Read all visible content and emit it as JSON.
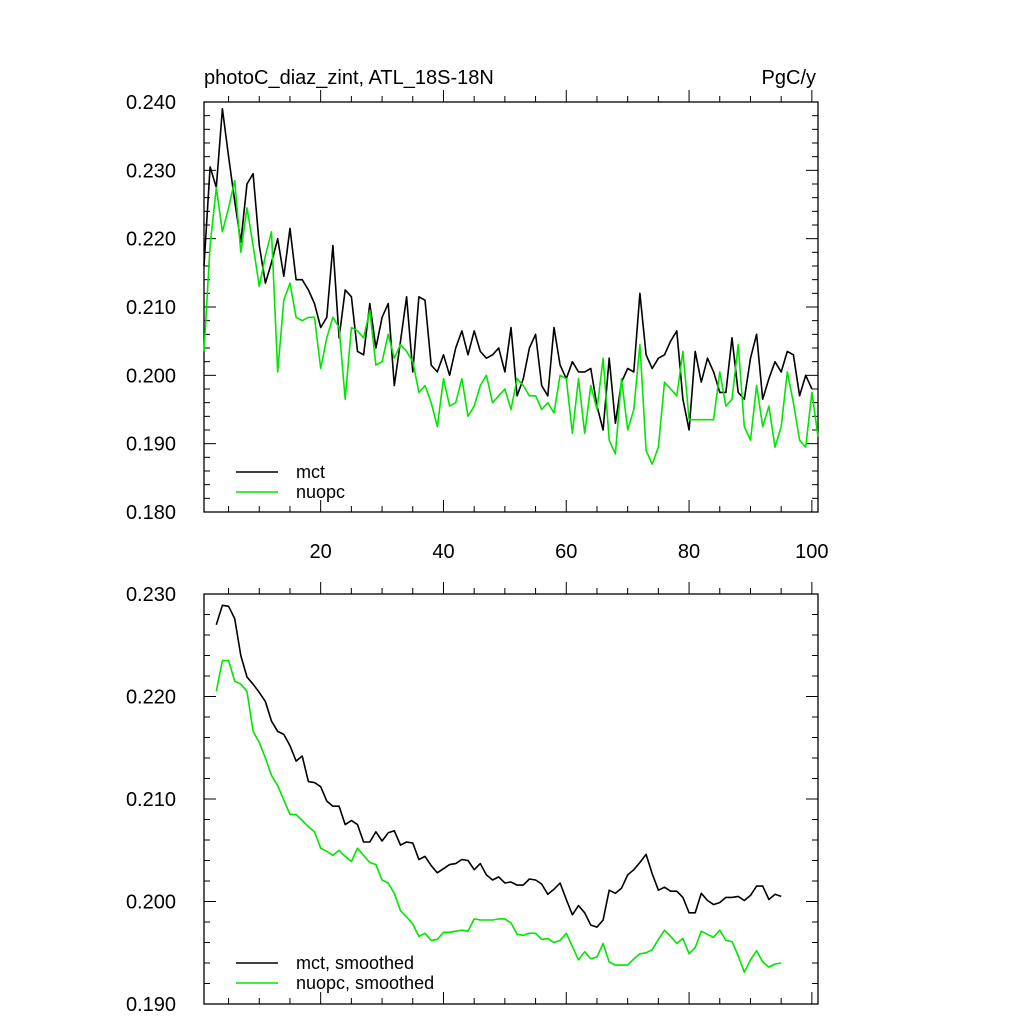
{
  "chart_data": [
    {
      "type": "line",
      "title": "photoC_diaz_zint, ATL_18S-18N",
      "units": "PgC/y",
      "xlim": [
        1,
        101
      ],
      "ylim": [
        0.18,
        0.24
      ],
      "xticks": [
        20,
        40,
        60,
        80,
        100
      ],
      "xtick_labels": [
        "20",
        "40",
        "60",
        "80",
        "100"
      ],
      "yticks": [
        0.18,
        0.19,
        0.2,
        0.21,
        0.22,
        0.23,
        0.24
      ],
      "ytick_labels": [
        "0.180",
        "0.190",
        "0.200",
        "0.210",
        "0.220",
        "0.230",
        "0.240"
      ],
      "legend_position": "bottom-left",
      "x_start": 1,
      "series": [
        {
          "name": "mct",
          "color": "#000000",
          "values": [
            0.216,
            0.2305,
            0.2275,
            0.239,
            0.232,
            0.2255,
            0.2195,
            0.228,
            0.2295,
            0.219,
            0.2135,
            0.2165,
            0.22,
            0.2145,
            0.2215,
            0.214,
            0.214,
            0.2125,
            0.2105,
            0.207,
            0.2085,
            0.219,
            0.2055,
            0.2125,
            0.2115,
            0.2035,
            0.203,
            0.2105,
            0.204,
            0.2085,
            0.2105,
            0.1985,
            0.205,
            0.2115,
            0.2005,
            0.2115,
            0.211,
            0.2015,
            0.2005,
            0.203,
            0.2,
            0.204,
            0.2065,
            0.203,
            0.2065,
            0.2035,
            0.2025,
            0.203,
            0.204,
            0.2005,
            0.207,
            0.197,
            0.1995,
            0.204,
            0.206,
            0.1985,
            0.197,
            0.207,
            0.2015,
            0.1995,
            0.202,
            0.2005,
            0.2005,
            0.201,
            0.1955,
            0.192,
            0.2025,
            0.193,
            0.199,
            0.201,
            0.2005,
            0.212,
            0.203,
            0.201,
            0.2025,
            0.203,
            0.205,
            0.2065,
            0.1965,
            0.192,
            0.2035,
            0.199,
            0.2025,
            0.2005,
            0.1975,
            0.1975,
            0.2055,
            0.1975,
            0.1965,
            0.2025,
            0.206,
            0.1965,
            0.1995,
            0.202,
            0.2005,
            0.2035,
            0.203,
            0.197,
            0.2,
            0.198
          ],
          "x_start": 1
        },
        {
          "name": "nuopc",
          "color": "#00e600",
          "values": [
            0.2035,
            0.219,
            0.2275,
            0.221,
            0.2245,
            0.2285,
            0.218,
            0.2245,
            0.219,
            0.213,
            0.2175,
            0.221,
            0.2005,
            0.211,
            0.2135,
            0.2085,
            0.208,
            0.2085,
            0.2085,
            0.201,
            0.2055,
            0.2085,
            0.207,
            0.1965,
            0.207,
            0.2065,
            0.2055,
            0.2095,
            0.2015,
            0.202,
            0.206,
            0.2025,
            0.2045,
            0.2035,
            0.202,
            0.1975,
            0.1985,
            0.196,
            0.1925,
            0.1995,
            0.1955,
            0.196,
            0.1995,
            0.194,
            0.1955,
            0.1985,
            0.2,
            0.196,
            0.197,
            0.198,
            0.195,
            0.1995,
            0.1985,
            0.197,
            0.197,
            0.195,
            0.196,
            0.1945,
            0.2,
            0.1995,
            0.1915,
            0.1995,
            0.1915,
            0.1985,
            0.195,
            0.2025,
            0.1905,
            0.1885,
            0.1995,
            0.192,
            0.195,
            0.2045,
            0.189,
            0.187,
            0.1895,
            0.199,
            0.198,
            0.197,
            0.2035,
            0.1935,
            0.1935,
            0.1935,
            0.1935,
            0.1935,
            0.2005,
            0.1955,
            0.1965,
            0.2045,
            0.1925,
            0.1905,
            0.1985,
            0.1925,
            0.1955,
            0.1895,
            0.1925,
            0.2005,
            0.196,
            0.1905,
            0.1895,
            0.1975,
            0.191
          ],
          "x_start": 1
        }
      ]
    },
    {
      "type": "line",
      "title": "",
      "units": "",
      "xlim": [
        1,
        101
      ],
      "ylim": [
        0.19,
        0.23
      ],
      "xticks": [
        20,
        40,
        60,
        80,
        100
      ],
      "xtick_labels": [],
      "yticks": [
        0.19,
        0.2,
        0.21,
        0.22,
        0.23
      ],
      "ytick_labels": [
        "0.190",
        "0.200",
        "0.210",
        "0.220",
        "0.230"
      ],
      "legend_position": "bottom-left",
      "x_start": 3,
      "series": [
        {
          "name": "mct, smoothed",
          "color": "#000000",
          "values": [
            0.227,
            0.2289,
            0.2288,
            0.2276,
            0.224,
            0.2219,
            0.2212,
            0.2204,
            0.2195,
            0.2176,
            0.2166,
            0.2163,
            0.2152,
            0.2137,
            0.2142,
            0.2117,
            0.2116,
            0.2112,
            0.2098,
            0.2093,
            0.2093,
            0.2075,
            0.2079,
            0.2075,
            0.2058,
            0.2058,
            0.2068,
            0.2059,
            0.2067,
            0.2069,
            0.2055,
            0.2058,
            0.2057,
            0.2041,
            0.2044,
            0.2035,
            0.2028,
            0.2032,
            0.2036,
            0.2037,
            0.2041,
            0.204,
            0.2031,
            0.2037,
            0.2026,
            0.2021,
            0.2024,
            0.2018,
            0.2019,
            0.2016,
            0.2016,
            0.2022,
            0.2021,
            0.2017,
            0.2007,
            0.2012,
            0.2018,
            0.2002,
            0.1987,
            0.1996,
            0.1989,
            0.1977,
            0.1975,
            0.1982,
            0.2011,
            0.2008,
            0.2013,
            0.2026,
            0.2031,
            0.2038,
            0.2046,
            0.2027,
            0.2011,
            0.2014,
            0.201,
            0.201,
            0.2004,
            0.1989,
            0.1989,
            0.2008,
            0.2001,
            0.1997,
            0.1999,
            0.2004,
            0.2004,
            0.2005,
            0.2001,
            0.2006,
            0.2015,
            0.2015,
            0.2002,
            0.2007,
            0.2005
          ]
        },
        {
          "name": "nuopc, smoothed",
          "color": "#00e600",
          "values": [
            0.2205,
            0.2235,
            0.2235,
            0.2215,
            0.2212,
            0.2205,
            0.2166,
            0.2155,
            0.214,
            0.2123,
            0.2113,
            0.2099,
            0.2085,
            0.2085,
            0.2079,
            0.2073,
            0.2068,
            0.2052,
            0.2049,
            0.2045,
            0.205,
            0.2044,
            0.2039,
            0.2052,
            0.2045,
            0.2038,
            0.2036,
            0.2021,
            0.2018,
            0.2008,
            0.1991,
            0.1985,
            0.1978,
            0.1966,
            0.1969,
            0.1962,
            0.1963,
            0.197,
            0.197,
            0.1971,
            0.1972,
            0.1971,
            0.1983,
            0.1982,
            0.1982,
            0.1982,
            0.1983,
            0.1983,
            0.1979,
            0.1968,
            0.1967,
            0.1969,
            0.1969,
            0.1963,
            0.1964,
            0.196,
            0.1962,
            0.1969,
            0.1956,
            0.1943,
            0.1951,
            0.1944,
            0.1946,
            0.1959,
            0.1941,
            0.1938,
            0.1938,
            0.1938,
            0.1944,
            0.1949,
            0.195,
            0.1953,
            0.1963,
            0.1972,
            0.1966,
            0.1959,
            0.1964,
            0.1949,
            0.1955,
            0.1971,
            0.1968,
            0.1965,
            0.1972,
            0.1962,
            0.1961,
            0.1947,
            0.1931,
            0.1943,
            0.1952,
            0.1941,
            0.1936,
            0.1939,
            0.194
          ]
        }
      ]
    }
  ]
}
